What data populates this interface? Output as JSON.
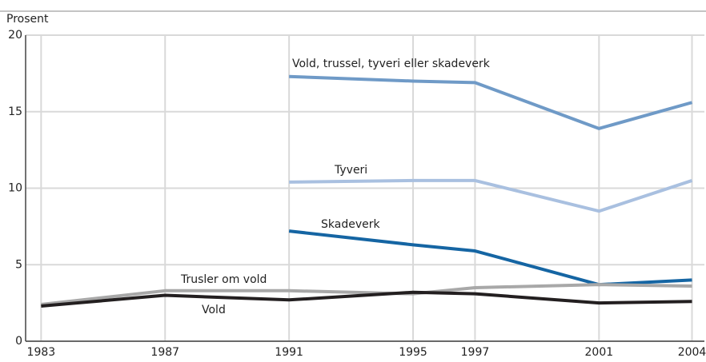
{
  "chart_data": {
    "type": "line",
    "ylabel": "Prosent",
    "xlim": [
      1982.5,
      2004.4
    ],
    "xticks": [
      1983,
      1987,
      1991,
      1995,
      1997,
      2001,
      2004
    ],
    "ylim": [
      0,
      20
    ],
    "yticks": [
      0,
      5,
      10,
      15,
      20
    ],
    "grid": true,
    "series": [
      {
        "name": "Vold, trussel, tyveri eller skadeverk",
        "color": "#6f9ac7",
        "x": [
          1991,
          1995,
          1997,
          2001,
          2004
        ],
        "values": [
          17.3,
          17.0,
          16.9,
          13.9,
          15.6
        ]
      },
      {
        "name": "Tyveri",
        "color": "#a9c0e0",
        "x": [
          1991,
          1995,
          1997,
          2001,
          2004
        ],
        "values": [
          10.4,
          10.5,
          10.5,
          8.5,
          10.5
        ]
      },
      {
        "name": "Skadeverk",
        "color": "#1565a3",
        "x": [
          1991,
          1995,
          1997,
          2001,
          2004
        ],
        "values": [
          7.2,
          6.3,
          5.9,
          3.7,
          4.0
        ]
      },
      {
        "name": "Trusler om vold",
        "color": "#a8a8a8",
        "x": [
          1983,
          1987,
          1991,
          1995,
          1997,
          2001,
          2004
        ],
        "values": [
          2.4,
          3.3,
          3.3,
          3.1,
          3.5,
          3.7,
          3.6
        ]
      },
      {
        "name": "Vold",
        "color": "#231f20",
        "x": [
          1983,
          1987,
          1991,
          1995,
          1997,
          2001,
          2004
        ],
        "values": [
          2.3,
          3.0,
          2.7,
          3.2,
          3.1,
          2.5,
          2.6
        ]
      }
    ]
  }
}
